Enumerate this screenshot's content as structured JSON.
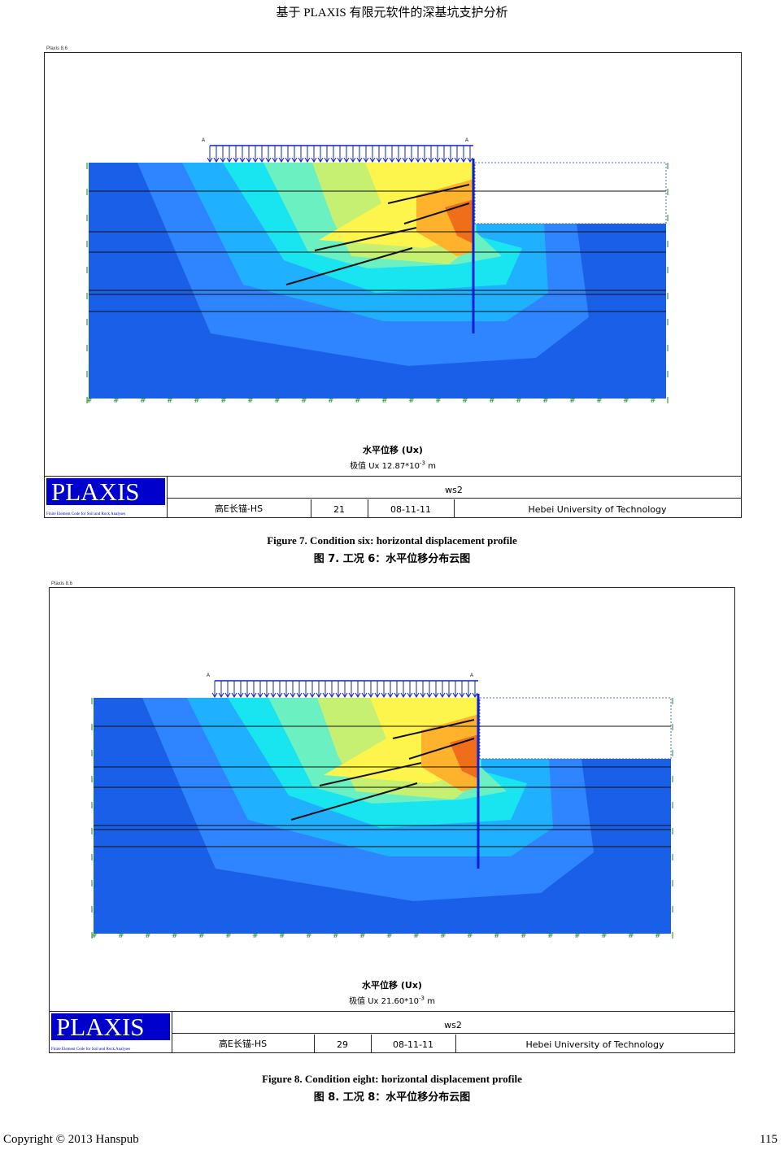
{
  "header": {
    "running_title": "基于 PLAXIS 有限元软件的深基坑支护分析"
  },
  "colors": {
    "deep_blue": "#1a5fe8",
    "mid_blue": "#2f86ff",
    "light_blue": "#1fb3ff",
    "cyan": "#19e6ef",
    "aqua_green": "#6ef0c0",
    "yellow_green": "#c8f070",
    "yellow": "#fff44a",
    "orange": "#ffb02a",
    "red_orange": "#f06a1a",
    "wall": "#0a1fd6",
    "logo_blue": "#0000cc"
  },
  "figures": [
    {
      "program_tag": "Plaxis 8.6",
      "plot_title": "水平位移 (Ux)",
      "extreme_prefix": "极值 Ux 12.87*10",
      "extreme_exponent": "-3",
      "extreme_unit": "m",
      "load_label_left": "A",
      "load_label_right": "A",
      "titleblock": {
        "logo_text": "PLAXIS",
        "logo_subtitle": "Finite Element Code for Soil and Rock Analyses",
        "project": "ws2",
        "model": "高E长锚-HS",
        "step": "21",
        "date": "08-11-11",
        "user": "Hebei University of Technology"
      },
      "caption_en": "Figure 7. Condition six: horizontal displacement profile",
      "caption_zh": "图 7.  工况 6：水平位移分布云图"
    },
    {
      "program_tag": "Plaxis 8.6",
      "plot_title": "水平位移 (Ux)",
      "extreme_prefix": "极值 Ux 21.60*10",
      "extreme_exponent": "-3",
      "extreme_unit": "m",
      "load_label_left": "A",
      "load_label_right": "A",
      "titleblock": {
        "logo_text": "PLAXIS",
        "logo_subtitle": "Finite Element Code for Soil and Rock Analyses",
        "project": "ws2",
        "model": "高E长锚-HS",
        "step": "29",
        "date": "08-11-11",
        "user": "Hebei University of Technology"
      },
      "caption_en": "Figure 8. Condition eight: horizontal displacement profile",
      "caption_zh": "图 8.  工况 8：水平位移分布云图"
    }
  ],
  "footer": {
    "copyright": "Copyright © 2013 Hanspub",
    "page_number": "115"
  }
}
